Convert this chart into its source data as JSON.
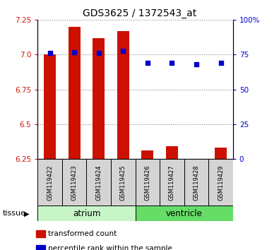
{
  "title": "GDS3625 / 1372543_at",
  "samples": [
    "GSM119422",
    "GSM119423",
    "GSM119424",
    "GSM119425",
    "GSM119426",
    "GSM119427",
    "GSM119428",
    "GSM119429"
  ],
  "transformed_count": [
    7.0,
    7.2,
    7.12,
    7.17,
    6.31,
    6.34,
    6.22,
    6.33
  ],
  "percentile_rank": [
    76,
    77,
    76,
    78,
    69,
    69,
    68,
    69
  ],
  "baseline": 6.25,
  "ylim_left": [
    6.25,
    7.25
  ],
  "ylim_right": [
    0,
    100
  ],
  "yticks_left": [
    6.25,
    6.5,
    6.75,
    7.0,
    7.25
  ],
  "yticks_right": [
    0,
    25,
    50,
    75,
    100
  ],
  "ytick_labels_right": [
    "0",
    "25",
    "50",
    "75",
    "100%"
  ],
  "groups": [
    {
      "label": "atrium",
      "samples": [
        0,
        1,
        2,
        3
      ],
      "color": "#c8f5c8"
    },
    {
      "label": "ventricle",
      "samples": [
        4,
        5,
        6,
        7
      ],
      "color": "#66dd66"
    }
  ],
  "bar_color": "#cc1100",
  "dot_color": "#0000cc",
  "bar_width": 0.5,
  "grid_color": "#888888",
  "left_tick_color": "#cc1100",
  "right_tick_color": "#0000cc",
  "tissue_label": "tissue",
  "legend_items": [
    {
      "label": "transformed count",
      "color": "#cc1100"
    },
    {
      "label": "percentile rank within the sample",
      "color": "#0000cc"
    }
  ],
  "title_fontsize": 10,
  "tick_fontsize": 7.5,
  "sample_fontsize": 6,
  "legend_fontsize": 7.5
}
